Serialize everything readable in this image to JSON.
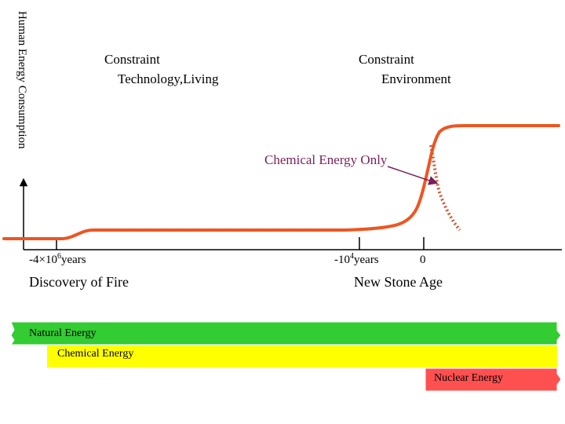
{
  "y_axis": {
    "label": "Human Energy Consumption"
  },
  "constraints": {
    "left": {
      "line1": "Constraint",
      "line2": "Technology,Living"
    },
    "right": {
      "line1": "Constraint",
      "line2": "Environment"
    }
  },
  "callout": {
    "text": "Chemical Energy Only"
  },
  "ticks": {
    "left": {
      "base": "-4×10",
      "exp": "6",
      "unit": "years"
    },
    "mid": {
      "base": "-10",
      "exp": "4",
      "unit": "years"
    },
    "zero": {
      "text": "0"
    }
  },
  "events": {
    "fire": "Discovery of Fire",
    "stone_age": "New Stone Age"
  },
  "bands": {
    "natural": {
      "label": "Natural Energy",
      "color": "#33cc33"
    },
    "chemical": {
      "label": "Chemical Energy",
      "color": "#ffff00"
    },
    "nuclear": {
      "label": "Nuclear Energy",
      "color": "#ff5050"
    }
  },
  "colors": {
    "curve": "#ee5522",
    "dotted_curve": "#cc5533",
    "callout": "#7a1f5a",
    "axis": "#000000"
  }
}
